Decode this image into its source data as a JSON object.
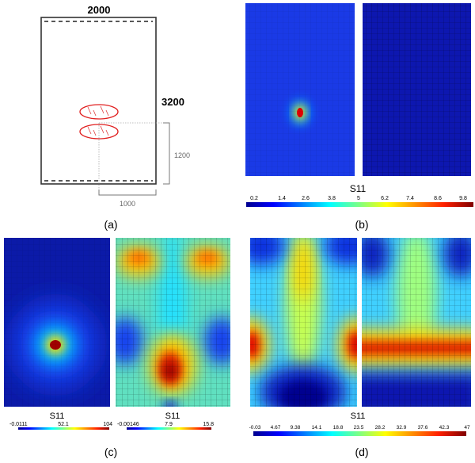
{
  "panel_a": {
    "label": "(a)",
    "width_label": "2000",
    "height_label": "3200",
    "vertical_offset_label": "1200",
    "horizontal_offset_label": "1000"
  },
  "panel_b": {
    "label": "(b)",
    "colorbar": {
      "title": "S11",
      "ticks": [
        "0.2",
        "1.4",
        "2.6",
        "3.8",
        "5",
        "6.2",
        "7.4",
        "8.6",
        "9.8"
      ]
    }
  },
  "panel_c": {
    "label": "(c)",
    "colorbar_left": {
      "title": "S11",
      "ticks": [
        "-0.0111",
        "52.1",
        "104"
      ]
    },
    "colorbar_right": {
      "title": "S11",
      "ticks": [
        "-0.00146",
        "7.9",
        "15.8"
      ]
    }
  },
  "panel_d": {
    "label": "(d)",
    "colorbar": {
      "title": "S11",
      "ticks": [
        "-0.03",
        "4.67",
        "9.38",
        "14.1",
        "18.8",
        "23.5",
        "28.2",
        "32.9",
        "37.6",
        "42.3",
        "47"
      ]
    }
  },
  "colormap": [
    "#00008f",
    "#0000ff",
    "#0080ff",
    "#00ffff",
    "#80ff80",
    "#ffff00",
    "#ff8000",
    "#ff0000",
    "#800000"
  ]
}
